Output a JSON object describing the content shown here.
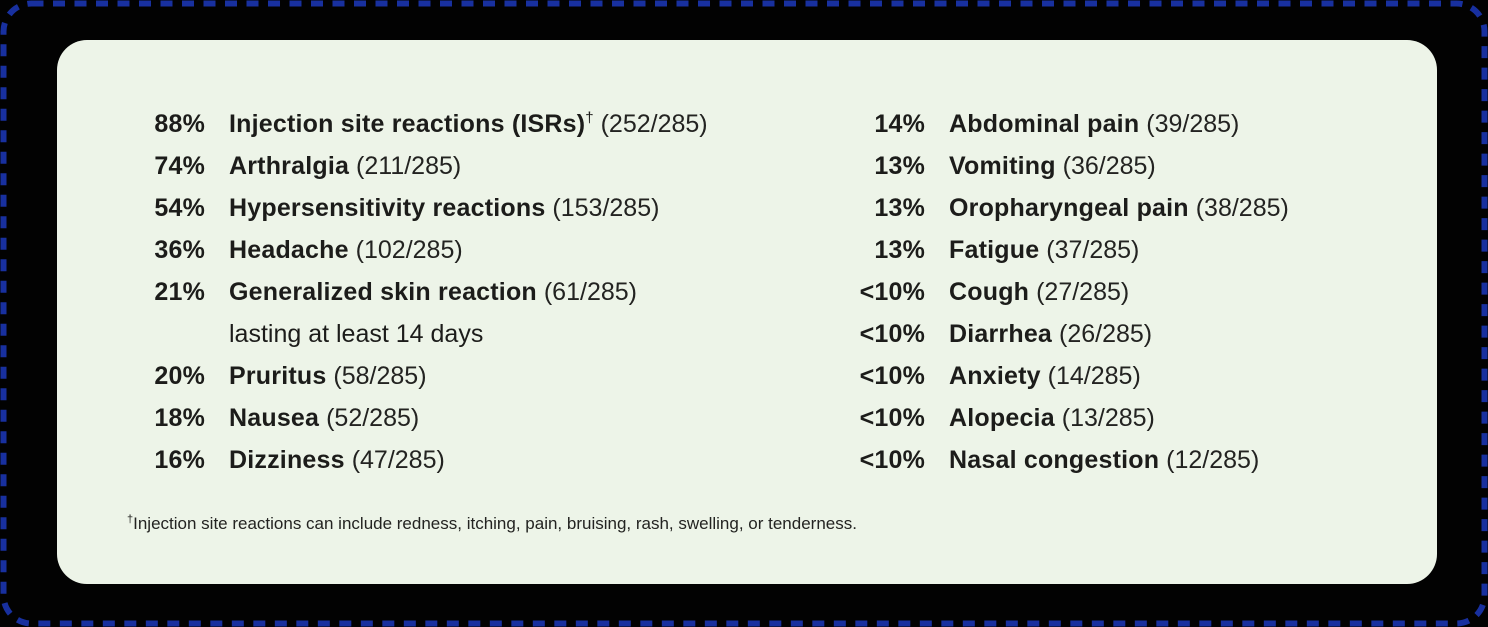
{
  "colors": {
    "background": "#020202",
    "border_blue": "#18309f",
    "card_background": "#edf4e8",
    "text": "#1c1c1a"
  },
  "adverse_reactions": {
    "denominator": "285",
    "left_column": [
      {
        "percent": "88%",
        "name": "Injection site reactions (ISRs)",
        "dagger": "†",
        "count": "(252/285)"
      },
      {
        "percent": "74%",
        "name": "Arthralgia",
        "count": "(211/285)"
      },
      {
        "percent": "54%",
        "name": "Hypersensitivity reactions",
        "count": "(153/285)"
      },
      {
        "percent": "36%",
        "name": "Headache",
        "count": "(102/285)"
      },
      {
        "percent": "21%",
        "name": "Generalized skin reaction",
        "count": "(61/285)",
        "note": "lasting at least 14 days"
      },
      {
        "percent": "20%",
        "name": "Pruritus",
        "count": "(58/285)"
      },
      {
        "percent": "18%",
        "name": "Nausea",
        "count": "(52/285)"
      },
      {
        "percent": "16%",
        "name": "Dizziness",
        "count": "(47/285)"
      }
    ],
    "right_column": [
      {
        "percent": "14%",
        "name": "Abdominal pain",
        "count": "(39/285)"
      },
      {
        "percent": "13%",
        "name": "Vomiting",
        "count": "(36/285)"
      },
      {
        "percent": "13%",
        "name": "Oropharyngeal pain",
        "count": "(38/285)"
      },
      {
        "percent": "13%",
        "name": "Fatigue",
        "count": "(37/285)"
      },
      {
        "percent": "<10%",
        "name": "Cough",
        "count": "(27/285)"
      },
      {
        "percent": "<10%",
        "name": "Diarrhea",
        "count": "(26/285)"
      },
      {
        "percent": "<10%",
        "name": "Anxiety",
        "count": "(14/285)"
      },
      {
        "percent": "<10%",
        "name": "Alopecia",
        "count": "(13/285)"
      },
      {
        "percent": "<10%",
        "name": "Nasal congestion",
        "count": "(12/285)"
      }
    ],
    "footnote": {
      "symbol": "†",
      "text": "Injection site reactions can include redness, itching, pain, bruising, rash, swelling, or tenderness."
    }
  }
}
